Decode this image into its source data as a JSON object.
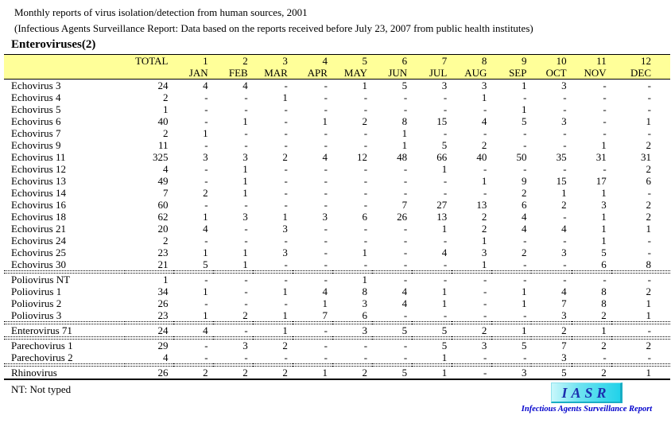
{
  "header": {
    "title": "Monthly reports of virus isolation/detection from human sources, 2001",
    "subtitle": "(Infectious Agents Surveillance Report: Data based on the reports received before July 23, 2007 from public health institutes)",
    "section": "Enteroviruses(2)"
  },
  "table": {
    "total_label": "TOTAL",
    "months": [
      {
        "num": "1",
        "abbr": "JAN"
      },
      {
        "num": "2",
        "abbr": "FEB"
      },
      {
        "num": "3",
        "abbr": "MAR"
      },
      {
        "num": "4",
        "abbr": "APR"
      },
      {
        "num": "5",
        "abbr": "MAY"
      },
      {
        "num": "6",
        "abbr": "JUN"
      },
      {
        "num": "7",
        "abbr": "JUL"
      },
      {
        "num": "8",
        "abbr": "AUG"
      },
      {
        "num": "9",
        "abbr": "SEP"
      },
      {
        "num": "10",
        "abbr": "OCT"
      },
      {
        "num": "11",
        "abbr": "NOV"
      },
      {
        "num": "12",
        "abbr": "DEC"
      }
    ],
    "rows": [
      {
        "name": "Echovirus 3",
        "total": "24",
        "values": [
          "4",
          "4",
          "-",
          "-",
          "1",
          "5",
          "3",
          "3",
          "1",
          "3",
          "-",
          "-"
        ],
        "sep_after": false
      },
      {
        "name": "Echovirus 4",
        "total": "2",
        "values": [
          "-",
          "-",
          "1",
          "-",
          "-",
          "-",
          "-",
          "1",
          "-",
          "-",
          "-",
          "-"
        ],
        "sep_after": false
      },
      {
        "name": "Echovirus 5",
        "total": "1",
        "values": [
          "-",
          "-",
          "-",
          "-",
          "-",
          "-",
          "-",
          "-",
          "1",
          "-",
          "-",
          "-"
        ],
        "sep_after": false
      },
      {
        "name": "Echovirus 6",
        "total": "40",
        "values": [
          "-",
          "1",
          "-",
          "1",
          "2",
          "8",
          "15",
          "4",
          "5",
          "3",
          "-",
          "1"
        ],
        "sep_after": false
      },
      {
        "name": "Echovirus 7",
        "total": "2",
        "values": [
          "1",
          "-",
          "-",
          "-",
          "-",
          "1",
          "-",
          "-",
          "-",
          "-",
          "-",
          "-"
        ],
        "sep_after": false
      },
      {
        "name": "Echovirus 9",
        "total": "11",
        "values": [
          "-",
          "-",
          "-",
          "-",
          "-",
          "1",
          "5",
          "2",
          "-",
          "-",
          "1",
          "2"
        ],
        "sep_after": false
      },
      {
        "name": "Echovirus 11",
        "total": "325",
        "values": [
          "3",
          "3",
          "2",
          "4",
          "12",
          "48",
          "66",
          "40",
          "50",
          "35",
          "31",
          "31"
        ],
        "sep_after": false
      },
      {
        "name": "Echovirus 12",
        "total": "4",
        "values": [
          "-",
          "1",
          "-",
          "-",
          "-",
          "-",
          "1",
          "-",
          "-",
          "-",
          "-",
          "2"
        ],
        "sep_after": false
      },
      {
        "name": "Echovirus 13",
        "total": "49",
        "values": [
          "-",
          "1",
          "-",
          "-",
          "-",
          "-",
          "-",
          "1",
          "9",
          "15",
          "17",
          "6"
        ],
        "sep_after": false
      },
      {
        "name": "Echovirus 14",
        "total": "7",
        "values": [
          "2",
          "1",
          "-",
          "-",
          "-",
          "-",
          "-",
          "-",
          "2",
          "1",
          "1",
          "-"
        ],
        "sep_after": false
      },
      {
        "name": "Echovirus 16",
        "total": "60",
        "values": [
          "-",
          "-",
          "-",
          "-",
          "-",
          "7",
          "27",
          "13",
          "6",
          "2",
          "3",
          "2"
        ],
        "sep_after": false
      },
      {
        "name": "Echovirus 18",
        "total": "62",
        "values": [
          "1",
          "3",
          "1",
          "3",
          "6",
          "26",
          "13",
          "2",
          "4",
          "-",
          "1",
          "2"
        ],
        "sep_after": false
      },
      {
        "name": "Echovirus 21",
        "total": "20",
        "values": [
          "4",
          "-",
          "3",
          "-",
          "-",
          "-",
          "1",
          "2",
          "4",
          "4",
          "1",
          "1"
        ],
        "sep_after": false
      },
      {
        "name": "Echovirus 24",
        "total": "2",
        "values": [
          "-",
          "-",
          "-",
          "-",
          "-",
          "-",
          "-",
          "1",
          "-",
          "-",
          "1",
          "-"
        ],
        "sep_after": false
      },
      {
        "name": "Echovirus 25",
        "total": "23",
        "values": [
          "1",
          "1",
          "3",
          "-",
          "1",
          "-",
          "4",
          "3",
          "2",
          "3",
          "5",
          "-"
        ],
        "sep_after": false
      },
      {
        "name": "Echovirus 30",
        "total": "21",
        "values": [
          "5",
          "1",
          "-",
          "-",
          "-",
          "-",
          "-",
          "1",
          "-",
          "-",
          "6",
          "8"
        ],
        "sep_after": true
      },
      {
        "name": "Poliovirus NT",
        "total": "1",
        "values": [
          "-",
          "-",
          "-",
          "-",
          "1",
          "-",
          "-",
          "-",
          "-",
          "-",
          "-",
          "-"
        ],
        "sep_after": false
      },
      {
        "name": "Poliovirus 1",
        "total": "34",
        "values": [
          "1",
          "-",
          "1",
          "4",
          "8",
          "4",
          "1",
          "-",
          "1",
          "4",
          "8",
          "2"
        ],
        "sep_after": false
      },
      {
        "name": "Poliovirus 2",
        "total": "26",
        "values": [
          "-",
          "-",
          "-",
          "1",
          "3",
          "4",
          "1",
          "-",
          "1",
          "7",
          "8",
          "1"
        ],
        "sep_after": false
      },
      {
        "name": "Poliovirus 3",
        "total": "23",
        "values": [
          "1",
          "2",
          "1",
          "7",
          "6",
          "-",
          "-",
          "-",
          "-",
          "3",
          "2",
          "1"
        ],
        "sep_after": true
      },
      {
        "name": "Enterovirus 71",
        "total": "24",
        "values": [
          "4",
          "-",
          "1",
          "-",
          "3",
          "5",
          "5",
          "2",
          "1",
          "2",
          "1",
          "-"
        ],
        "sep_after": true
      },
      {
        "name": "Parechovirus 1",
        "total": "29",
        "values": [
          "-",
          "3",
          "2",
          "-",
          "-",
          "-",
          "5",
          "3",
          "5",
          "7",
          "2",
          "2"
        ],
        "sep_after": false
      },
      {
        "name": "Parechovirus 2",
        "total": "4",
        "values": [
          "-",
          "-",
          "-",
          "-",
          "-",
          "-",
          "1",
          "-",
          "-",
          "3",
          "-",
          "-"
        ],
        "sep_after": true
      },
      {
        "name": "Rhinovirus",
        "total": "26",
        "values": [
          "2",
          "2",
          "2",
          "1",
          "2",
          "5",
          "1",
          "-",
          "3",
          "5",
          "2",
          "1"
        ],
        "sep_after": false
      }
    ]
  },
  "footnote": "NT: Not typed",
  "logo": {
    "text": "IASR",
    "caption": "Infectious Agents Surveillance Report"
  },
  "colors": {
    "header_bg": "#ffff99",
    "logo_bg": "#22d2e9",
    "logo_text": "#1c2fae",
    "caption_text": "#0000cc"
  }
}
